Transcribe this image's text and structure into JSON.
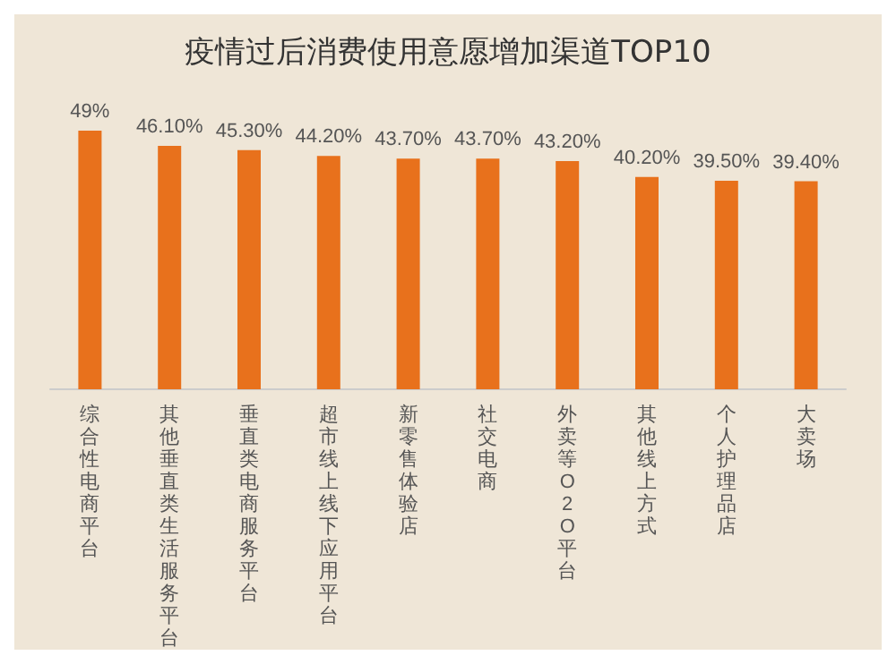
{
  "chart_data": {
    "type": "bar",
    "title": "疫情过后消费使用意愿增加渠道TOP10",
    "categories": [
      "综合性电商平台",
      "其他垂直类生活服务平台",
      "垂直类电商服务平台",
      "超市线上线下应用平台",
      "新零售体验店",
      "社交电商",
      "外卖等O2O平台",
      "其他线上方式",
      "个人护理品店",
      "大卖场"
    ],
    "values": [
      49,
      46.1,
      45.3,
      44.2,
      43.7,
      43.7,
      43.2,
      40.2,
      39.5,
      39.4
    ],
    "value_labels": [
      "49%",
      "46.10%",
      "45.30%",
      "44.20%",
      "43.70%",
      "43.70%",
      "43.20%",
      "40.20%",
      "39.50%",
      "39.40%"
    ],
    "color": "#e8711c"
  }
}
